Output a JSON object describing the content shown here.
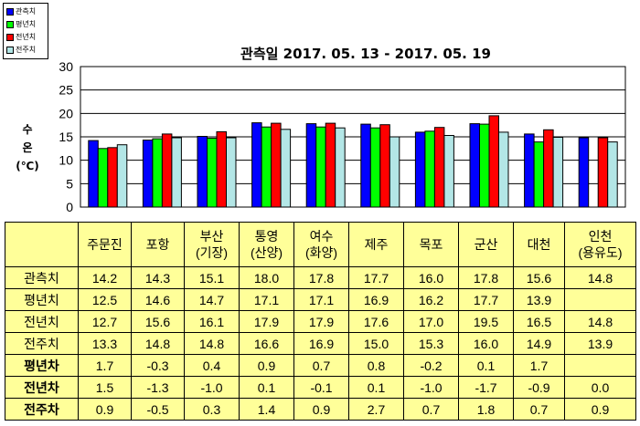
{
  "chart_data": {
    "type": "bar",
    "title": "관측일 2017. 05. 13 - 2017. 05. 19",
    "ylabel": [
      "수",
      "온",
      "(℃)"
    ],
    "ylim": [
      0,
      30
    ],
    "yticks": [
      "0",
      "5",
      "10",
      "15",
      "20",
      "25",
      "30"
    ],
    "grid": true,
    "legend_position": "top-left",
    "categories": [
      "주문진",
      "포항",
      "부산(기장)",
      "통영(산양)",
      "여수(화양)",
      "제주",
      "목포",
      "군산",
      "대천",
      "인천(용유도)"
    ],
    "category_lines": [
      [
        "주문진"
      ],
      [
        "포항"
      ],
      [
        "부산",
        "(기장)"
      ],
      [
        "통영",
        "(산양)"
      ],
      [
        "여수",
        "(화양)"
      ],
      [
        "제주"
      ],
      [
        "목포"
      ],
      [
        "군산"
      ],
      [
        "대천"
      ],
      [
        "인천",
        "(용유도)"
      ]
    ],
    "series": [
      {
        "name": "관측치",
        "color": "#0000ff",
        "values": [
          14.2,
          14.3,
          15.1,
          18.0,
          17.8,
          17.7,
          16.0,
          17.8,
          15.6,
          14.8
        ]
      },
      {
        "name": "평년치",
        "color": "#00ff00",
        "values": [
          12.5,
          14.6,
          14.7,
          17.1,
          17.1,
          16.9,
          16.2,
          17.7,
          13.9,
          null
        ]
      },
      {
        "name": "전년치",
        "color": "#ff0000",
        "values": [
          12.7,
          15.6,
          16.1,
          17.9,
          17.9,
          17.6,
          17.0,
          19.5,
          16.5,
          14.8
        ]
      },
      {
        "name": "전주치",
        "color": "#b3e6e6",
        "values": [
          13.3,
          14.8,
          14.8,
          16.6,
          16.9,
          15.0,
          15.3,
          16.0,
          14.9,
          13.9
        ]
      }
    ],
    "table": {
      "rows": [
        {
          "label": "관측치",
          "bold": false,
          "cells": [
            "14.2",
            "14.3",
            "15.1",
            "18.0",
            "17.8",
            "17.7",
            "16.0",
            "17.8",
            "15.6",
            "14.8"
          ]
        },
        {
          "label": "평년치",
          "bold": false,
          "cells": [
            "12.5",
            "14.6",
            "14.7",
            "17.1",
            "17.1",
            "16.9",
            "16.2",
            "17.7",
            "13.9",
            ""
          ]
        },
        {
          "label": "전년치",
          "bold": false,
          "cells": [
            "12.7",
            "15.6",
            "16.1",
            "17.9",
            "17.9",
            "17.6",
            "17.0",
            "19.5",
            "16.5",
            "14.8"
          ]
        },
        {
          "label": "전주치",
          "bold": false,
          "cells": [
            "13.3",
            "14.8",
            "14.8",
            "16.6",
            "16.9",
            "15.0",
            "15.3",
            "16.0",
            "14.9",
            "13.9"
          ]
        },
        {
          "label": "평년차",
          "bold": true,
          "cells": [
            "1.7",
            "-0.3",
            "0.4",
            "0.9",
            "0.7",
            "0.8",
            "-0.2",
            "0.1",
            "1.7",
            ""
          ]
        },
        {
          "label": "전년차",
          "bold": true,
          "cells": [
            "1.5",
            "-1.3",
            "-1.0",
            "0.1",
            "-0.1",
            "0.1",
            "-1.0",
            "-1.7",
            "-0.9",
            "0.0"
          ]
        },
        {
          "label": "전주차",
          "bold": true,
          "cells": [
            "0.9",
            "-0.5",
            "0.3",
            "1.4",
            "0.9",
            "2.7",
            "0.7",
            "1.8",
            "0.7",
            "0.9"
          ]
        }
      ]
    }
  }
}
